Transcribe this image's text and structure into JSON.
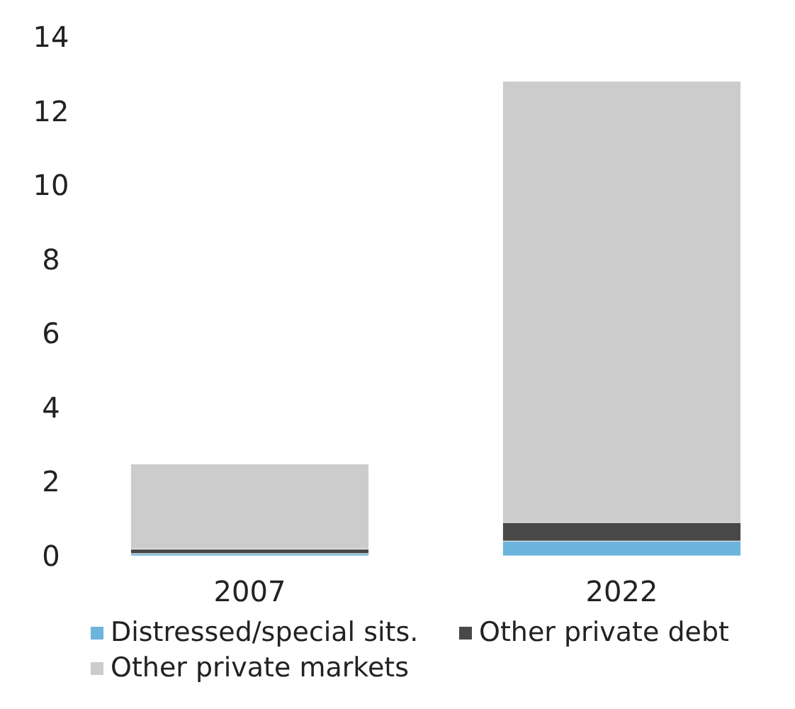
{
  "chart_data": {
    "type": "bar",
    "stacked": true,
    "categories": [
      "2007",
      "2022"
    ],
    "series": [
      {
        "name": "Distressed/special sits.",
        "color": "#6cb4dc",
        "values": [
          0.06,
          0.4
        ]
      },
      {
        "name": "Other private debt",
        "color": "#484848",
        "values": [
          0.12,
          0.5
        ]
      },
      {
        "name": "Other private markets",
        "color": "#cccccc",
        "values": [
          2.3,
          11.9
        ]
      }
    ],
    "ylim": [
      0,
      14
    ],
    "yticks": [
      0,
      2,
      4,
      6,
      8,
      10,
      12,
      14
    ],
    "grid": false,
    "legend": "bottom"
  }
}
